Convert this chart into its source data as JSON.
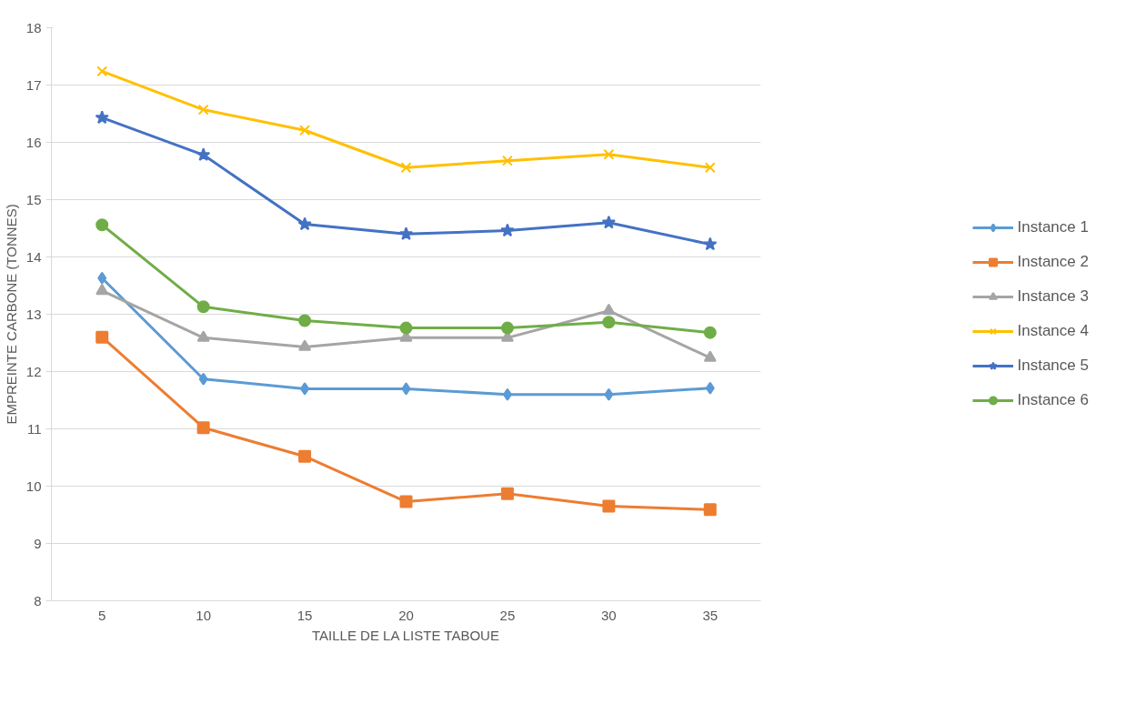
{
  "chart_data": {
    "type": "line",
    "xlabel": "TAILLE DE LA LISTE TABOUE",
    "ylabel": "EMPREINTE CARBONE (TONNES)",
    "categories": [
      "5",
      "10",
      "15",
      "20",
      "25",
      "30",
      "35"
    ],
    "ylim": [
      8,
      18
    ],
    "yticks": [
      8,
      9,
      10,
      11,
      12,
      13,
      14,
      15,
      16,
      17,
      18
    ],
    "grid": "y",
    "legend": "right",
    "line_style": "solid",
    "series": [
      {
        "name": "Instance 1",
        "color": "#5b9bd5",
        "marker": "diamond",
        "values": [
          13.63,
          11.87,
          11.7,
          11.7,
          11.6,
          11.6,
          11.71
        ]
      },
      {
        "name": "Instance 2",
        "color": "#ed7d31",
        "marker": "square",
        "values": [
          12.6,
          11.02,
          10.52,
          9.73,
          9.87,
          9.65,
          9.59
        ]
      },
      {
        "name": "Instance 3",
        "color": "#a5a5a5",
        "marker": "triangle",
        "values": [
          13.41,
          12.59,
          12.43,
          12.59,
          12.59,
          13.06,
          12.24
        ]
      },
      {
        "name": "Instance 4",
        "color": "#ffc000",
        "marker": "cross",
        "values": [
          17.24,
          16.57,
          16.21,
          15.56,
          15.68,
          15.79,
          15.56
        ]
      },
      {
        "name": "Instance 5",
        "color": "#4472c4",
        "marker": "star",
        "values": [
          16.43,
          15.78,
          14.57,
          14.4,
          14.46,
          14.6,
          14.22
        ]
      },
      {
        "name": "Instance 6",
        "color": "#70ad47",
        "marker": "circle",
        "values": [
          14.56,
          13.13,
          12.89,
          12.76,
          12.76,
          12.86,
          12.68
        ]
      }
    ]
  }
}
